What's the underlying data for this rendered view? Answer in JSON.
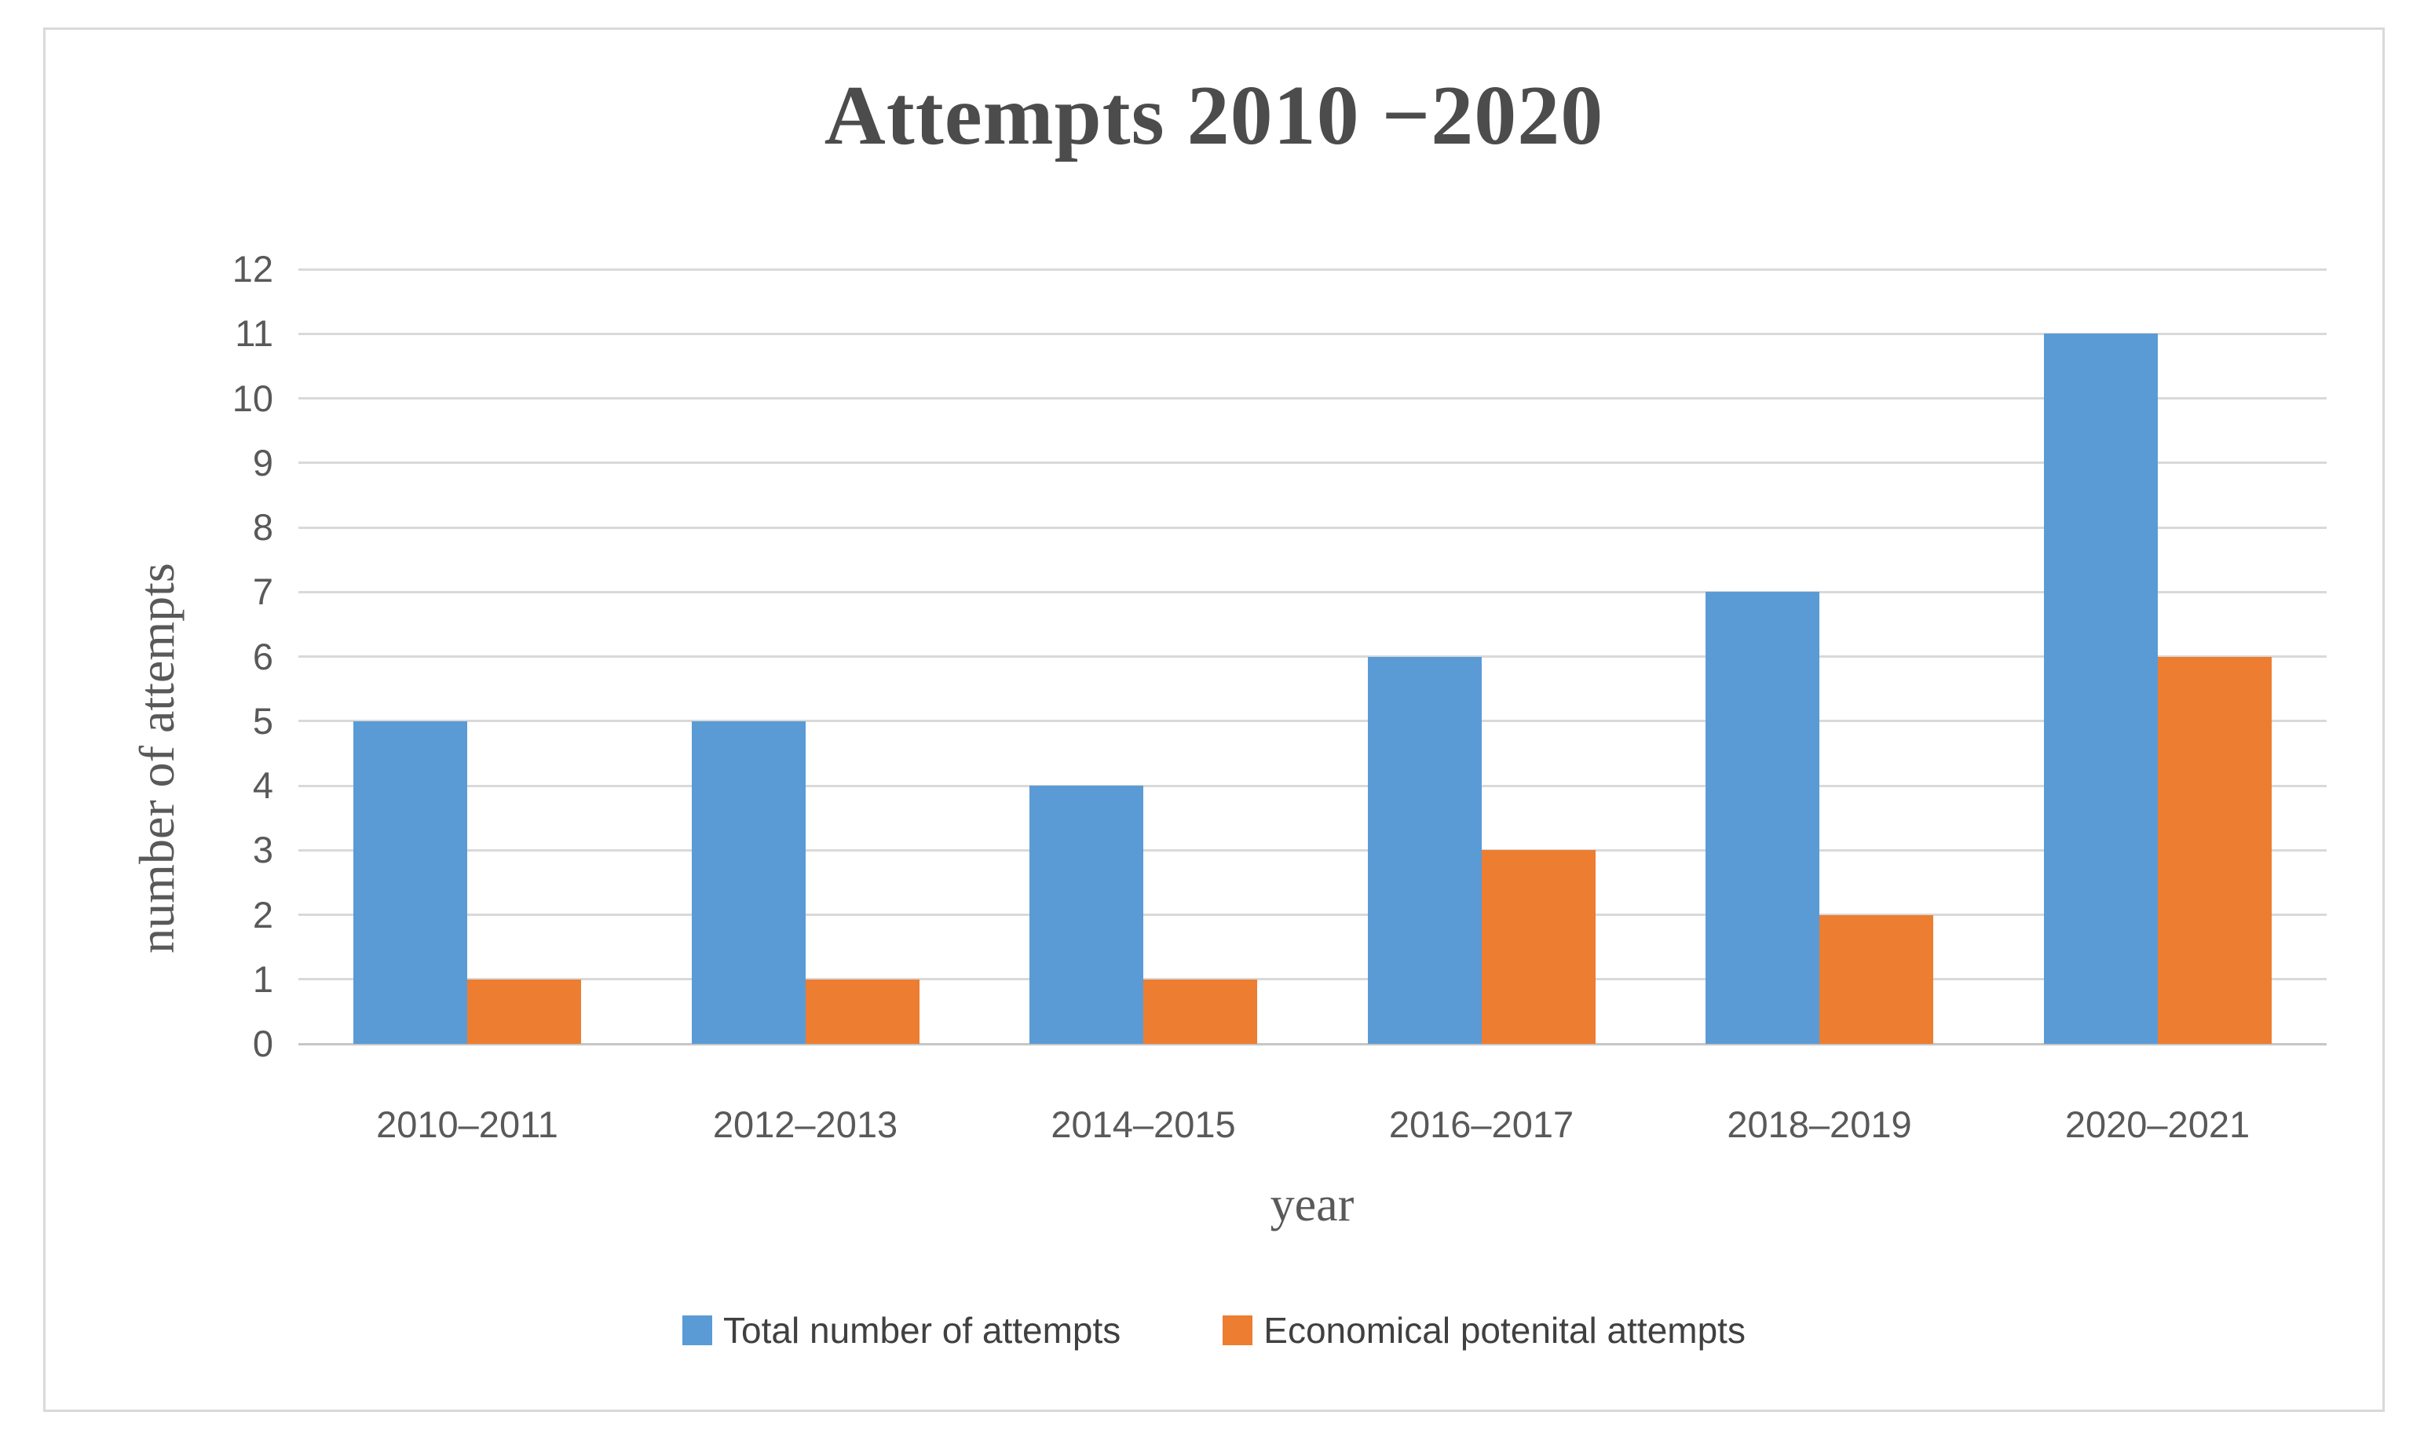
{
  "chart_data": {
    "type": "bar",
    "title": "Attempts 2010 −2020",
    "xlabel": "year",
    "ylabel": "number of attempts",
    "categories": [
      "2010–2011",
      "2012–2013",
      "2014–2015",
      "2016–2017",
      "2018–2019",
      "2020–2021"
    ],
    "series": [
      {
        "name": "Total number of attempts",
        "color": "#5B9BD5",
        "values": [
          5,
          5,
          4,
          6,
          7,
          11
        ]
      },
      {
        "name": "Economical potenital attempts",
        "color": "#ED7D31",
        "values": [
          1,
          1,
          1,
          3,
          2,
          6
        ]
      }
    ],
    "ylim": [
      0,
      12
    ],
    "ytick_step": 1,
    "grid": true,
    "legend_position": "bottom"
  },
  "style_colors": {
    "gridline": "#d9d9d9",
    "axis_line": "#c6c6c6",
    "tick_text": "#595959",
    "title_text": "#4c4c4c",
    "frame_border": "#d9d9d9"
  }
}
